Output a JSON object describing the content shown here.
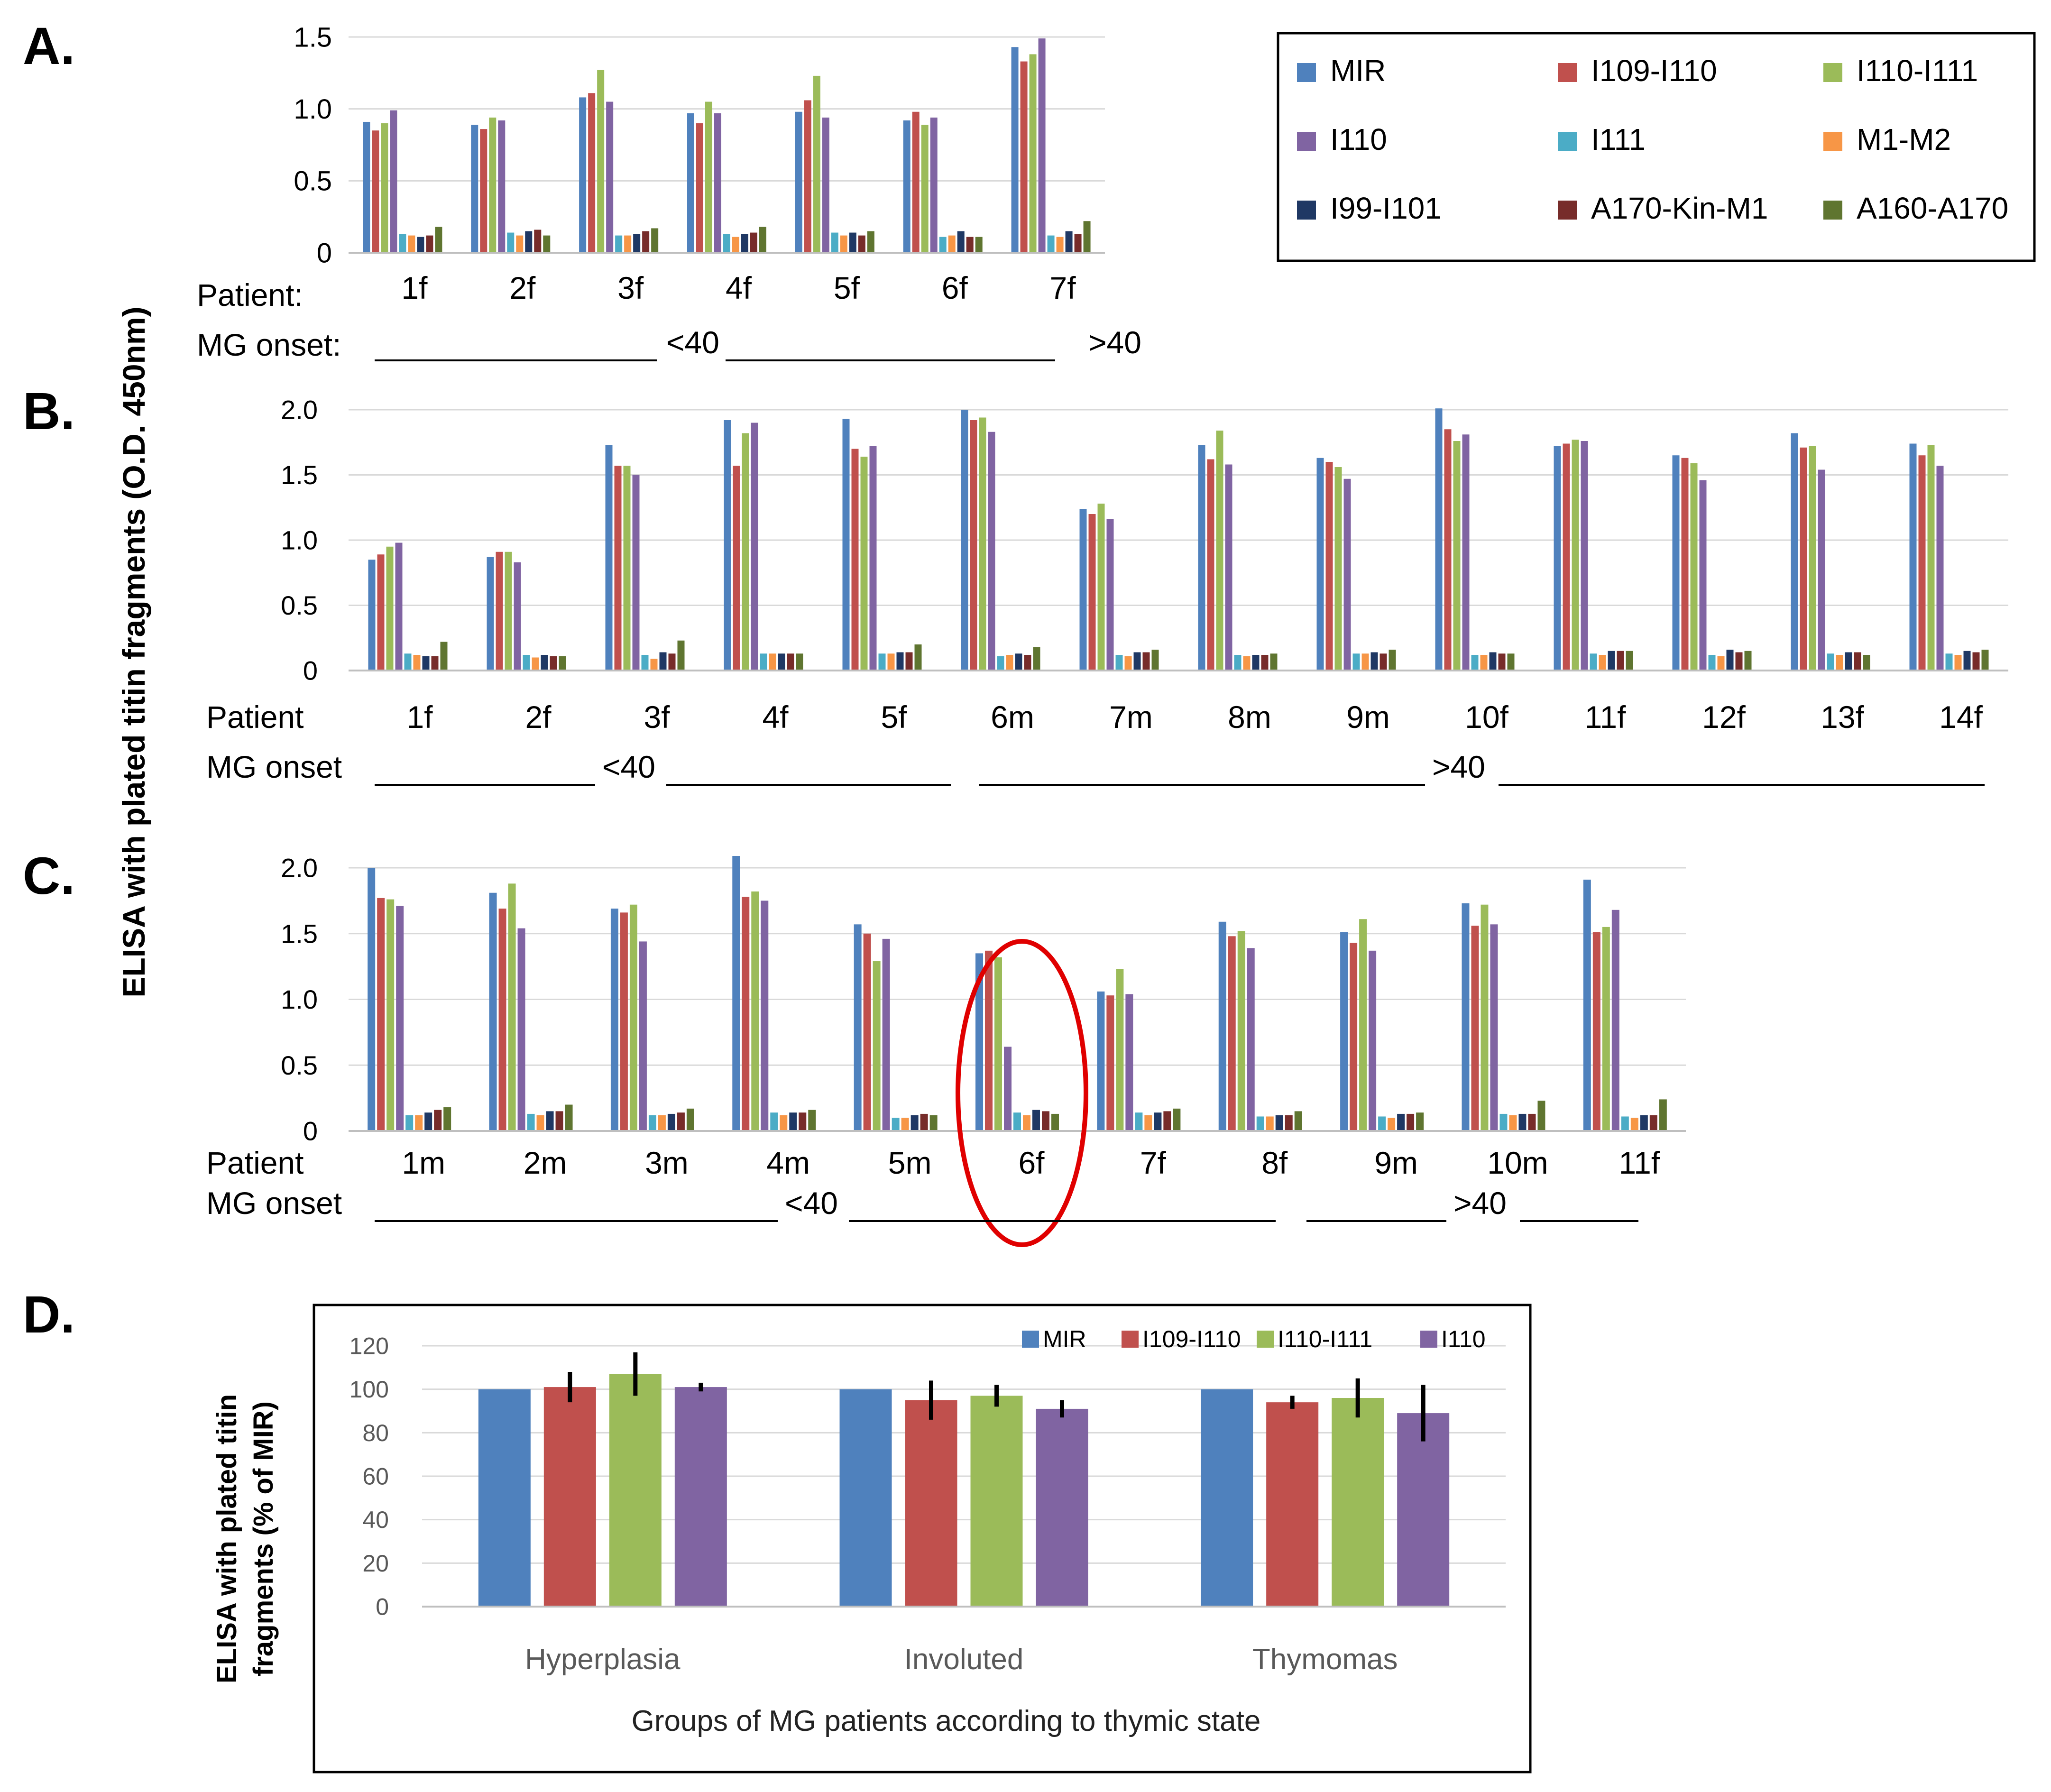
{
  "colors": {
    "MIR": "#4F81BD",
    "I109-I110": "#C0504D",
    "I110-I111": "#9BBB59",
    "I110": "#8064A2",
    "I111": "#4BACC6",
    "M1-M2": "#F79646",
    "I99-I101": "#1F3864",
    "A170-Kin-M1": "#772C2A",
    "A160-A170": "#5F7530",
    "highlight": "#E00000"
  },
  "y_axis_title": "ELISA with plated titin fragments (O.D. 450nm)",
  "legend_top": {
    "items": [
      "MIR",
      "I109-I110",
      "I110-I111",
      "I110",
      "I111",
      "M1-M2",
      "I99-I101",
      "A170-Kin-M1",
      "A160-A170"
    ]
  },
  "panels": [
    {
      "letter": "A.",
      "patient_label": "Patient:",
      "onset_label": "MG onset:",
      "onset_lt": "<40",
      "onset_gt": ">40"
    },
    {
      "letter": "B.",
      "patient_label": "Patient",
      "onset_label": "MG onset",
      "onset_lt": "<40",
      "onset_gt": ">40"
    },
    {
      "letter": "C.",
      "patient_label": "Patient",
      "onset_label": "MG onset",
      "onset_lt": "<40",
      "onset_gt": ">40"
    },
    {
      "letter": "D.",
      "y_axis_title_line1": "ELISA with plated titin",
      "y_axis_title_line2": "fragments (% of MIR)"
    }
  ],
  "chart_data": [
    {
      "type": "bar",
      "panel": "A",
      "categories": [
        "1f",
        "2f",
        "3f",
        "4f",
        "5f",
        "6f",
        "7f"
      ],
      "ylim": [
        0,
        1.5
      ],
      "yticks": [
        "0",
        "0.5",
        "1.0",
        "1.5"
      ],
      "series": [
        {
          "name": "MIR",
          "values": [
            0.91,
            0.89,
            1.08,
            0.97,
            0.98,
            0.92,
            1.43
          ]
        },
        {
          "name": "I109-I110",
          "values": [
            0.85,
            0.86,
            1.11,
            0.9,
            1.06,
            0.98,
            1.33
          ]
        },
        {
          "name": "I110-I111",
          "values": [
            0.9,
            0.94,
            1.27,
            1.05,
            1.23,
            0.89,
            1.38
          ]
        },
        {
          "name": "I110",
          "values": [
            0.99,
            0.92,
            1.05,
            0.97,
            0.94,
            0.94,
            1.49
          ]
        },
        {
          "name": "I111",
          "values": [
            0.13,
            0.14,
            0.12,
            0.13,
            0.14,
            0.11,
            0.12
          ]
        },
        {
          "name": "M1-M2",
          "values": [
            0.12,
            0.12,
            0.12,
            0.11,
            0.12,
            0.12,
            0.11
          ]
        },
        {
          "name": "I99-I101",
          "values": [
            0.11,
            0.15,
            0.13,
            0.13,
            0.14,
            0.15,
            0.15
          ]
        },
        {
          "name": "A170-Kin-M1",
          "values": [
            0.12,
            0.16,
            0.15,
            0.14,
            0.12,
            0.11,
            0.13
          ]
        },
        {
          "name": "A160-A170",
          "values": [
            0.18,
            0.12,
            0.17,
            0.18,
            0.15,
            0.11,
            0.22
          ]
        }
      ]
    },
    {
      "type": "bar",
      "panel": "B",
      "categories": [
        "1f",
        "2f",
        "3f",
        "4f",
        "5f",
        "6m",
        "7m",
        "8m",
        "9m",
        "10f",
        "11f",
        "12f",
        "13f",
        "14f"
      ],
      "ylim": [
        0,
        2.0
      ],
      "yticks": [
        "0",
        "0.5",
        "1.0",
        "1.5",
        "2.0"
      ],
      "series": [
        {
          "name": "MIR",
          "values": [
            0.85,
            0.87,
            1.73,
            1.92,
            1.93,
            2.0,
            1.24,
            1.73,
            1.63,
            2.01,
            1.72,
            1.65,
            1.82,
            1.74
          ]
        },
        {
          "name": "I109-I110",
          "values": [
            0.89,
            0.91,
            1.57,
            1.57,
            1.7,
            1.92,
            1.2,
            1.62,
            1.6,
            1.85,
            1.74,
            1.63,
            1.71,
            1.65
          ]
        },
        {
          "name": "I110-I111",
          "values": [
            0.95,
            0.91,
            1.57,
            1.82,
            1.64,
            1.94,
            1.28,
            1.84,
            1.56,
            1.76,
            1.77,
            1.59,
            1.72,
            1.73
          ]
        },
        {
          "name": "I110",
          "values": [
            0.98,
            0.83,
            1.5,
            1.9,
            1.72,
            1.83,
            1.16,
            1.58,
            1.47,
            1.81,
            1.76,
            1.46,
            1.54,
            1.57
          ]
        },
        {
          "name": "I111",
          "values": [
            0.13,
            0.12,
            0.12,
            0.13,
            0.13,
            0.11,
            0.12,
            0.12,
            0.13,
            0.12,
            0.13,
            0.12,
            0.13,
            0.13
          ]
        },
        {
          "name": "M1-M2",
          "values": [
            0.12,
            0.1,
            0.09,
            0.13,
            0.13,
            0.12,
            0.11,
            0.11,
            0.13,
            0.12,
            0.12,
            0.11,
            0.12,
            0.12
          ]
        },
        {
          "name": "I99-I101",
          "values": [
            0.11,
            0.12,
            0.14,
            0.13,
            0.14,
            0.13,
            0.14,
            0.12,
            0.14,
            0.14,
            0.15,
            0.16,
            0.14,
            0.15
          ]
        },
        {
          "name": "A170-Kin-M1",
          "values": [
            0.11,
            0.11,
            0.13,
            0.13,
            0.14,
            0.12,
            0.14,
            0.12,
            0.13,
            0.13,
            0.15,
            0.14,
            0.14,
            0.14
          ]
        },
        {
          "name": "A160-A170",
          "values": [
            0.22,
            0.11,
            0.23,
            0.13,
            0.2,
            0.18,
            0.16,
            0.13,
            0.16,
            0.13,
            0.15,
            0.15,
            0.12,
            0.16
          ]
        }
      ]
    },
    {
      "type": "bar",
      "panel": "C",
      "categories": [
        "1m",
        "2m",
        "3m",
        "4m",
        "5m",
        "6f",
        "7f",
        "8f",
        "9m",
        "10m",
        "11f"
      ],
      "highlighted_category": "6f",
      "ylim": [
        0,
        2.0
      ],
      "yticks": [
        "0",
        "0.5",
        "1.0",
        "1.5",
        "2.0"
      ],
      "series": [
        {
          "name": "MIR",
          "values": [
            2.0,
            1.81,
            1.69,
            2.09,
            1.57,
            1.35,
            1.06,
            1.59,
            1.51,
            1.73,
            1.91
          ]
        },
        {
          "name": "I109-I110",
          "values": [
            1.77,
            1.69,
            1.66,
            1.78,
            1.5,
            1.37,
            1.03,
            1.48,
            1.43,
            1.56,
            1.51
          ]
        },
        {
          "name": "I110-I111",
          "values": [
            1.76,
            1.88,
            1.72,
            1.82,
            1.29,
            1.32,
            1.23,
            1.52,
            1.61,
            1.72,
            1.55
          ]
        },
        {
          "name": "I110",
          "values": [
            1.71,
            1.54,
            1.44,
            1.75,
            1.46,
            0.64,
            1.04,
            1.39,
            1.37,
            1.57,
            1.68
          ]
        },
        {
          "name": "I111",
          "values": [
            0.12,
            0.13,
            0.12,
            0.14,
            0.1,
            0.14,
            0.14,
            0.11,
            0.11,
            0.13,
            0.11
          ]
        },
        {
          "name": "M1-M2",
          "values": [
            0.12,
            0.12,
            0.12,
            0.12,
            0.1,
            0.12,
            0.12,
            0.11,
            0.1,
            0.12,
            0.1
          ]
        },
        {
          "name": "I99-I101",
          "values": [
            0.14,
            0.15,
            0.13,
            0.14,
            0.12,
            0.16,
            0.14,
            0.12,
            0.13,
            0.13,
            0.12
          ]
        },
        {
          "name": "A170-Kin-M1",
          "values": [
            0.16,
            0.15,
            0.14,
            0.14,
            0.13,
            0.15,
            0.15,
            0.12,
            0.13,
            0.13,
            0.12
          ]
        },
        {
          "name": "A160-A170",
          "values": [
            0.18,
            0.2,
            0.17,
            0.16,
            0.12,
            0.13,
            0.17,
            0.15,
            0.14,
            0.23,
            0.24
          ]
        }
      ]
    },
    {
      "type": "bar",
      "panel": "D",
      "categories": [
        "Hyperplasia",
        "Involuted",
        "Thymomas"
      ],
      "xlabel": "Groups of MG patients according to thymic state",
      "ylabel": "ELISA with plated titin fragments (% of MIR)",
      "ylim": [
        0,
        120
      ],
      "yticks": [
        "0",
        "20",
        "40",
        "60",
        "80",
        "100",
        "120"
      ],
      "legend": [
        "MIR",
        "I109-I110",
        "I110-I111",
        "I110"
      ],
      "series": [
        {
          "name": "MIR",
          "values": [
            100,
            100,
            100
          ],
          "errors": [
            0,
            0,
            0
          ]
        },
        {
          "name": "I109-I110",
          "values": [
            101,
            95,
            94
          ],
          "errors": [
            7,
            9,
            3
          ]
        },
        {
          "name": "I110-I111",
          "values": [
            107,
            97,
            96
          ],
          "errors": [
            10,
            5,
            9
          ]
        },
        {
          "name": "I110",
          "values": [
            101,
            91,
            89
          ],
          "errors": [
            2,
            4,
            13
          ]
        }
      ]
    }
  ]
}
